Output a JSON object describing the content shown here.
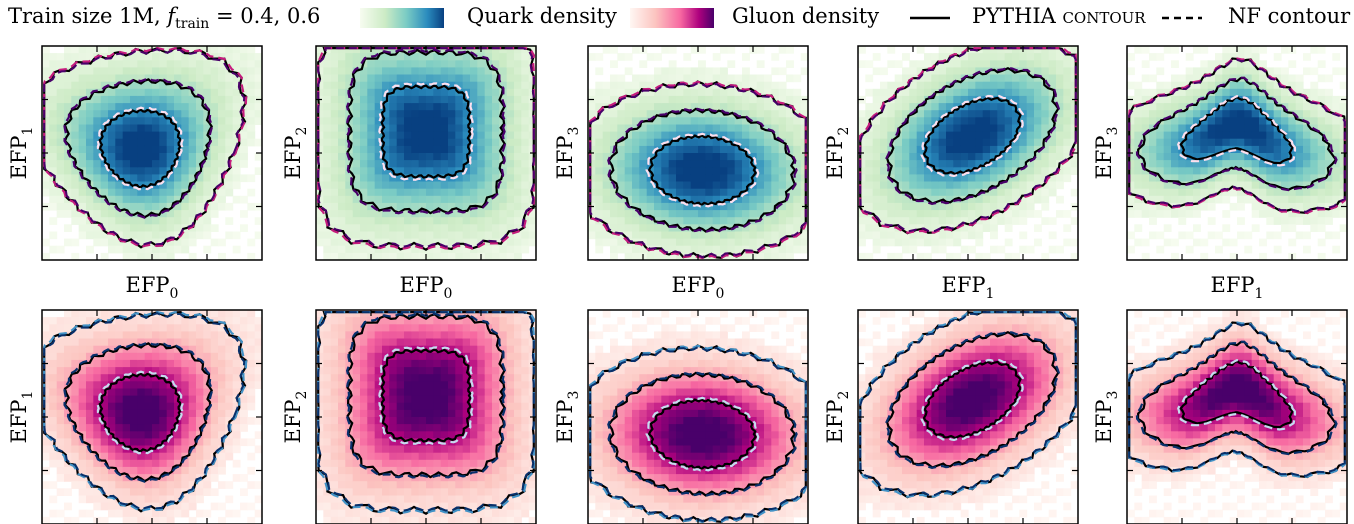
{
  "legend": {
    "title_prefix": "Train size 1M, ",
    "title_f": "f",
    "title_f_sub": "train",
    "title_suffix": " = 0.4, 0.6",
    "quark_label": "Quark density",
    "gluon_label": "Gluon density",
    "pythia_label": "PYTHIA contour",
    "nf_label": "NF contour"
  },
  "colors": {
    "quark_cmap": [
      "#f7fcf0",
      "#ccebc5",
      "#7bccc4",
      "#2b8cbe",
      "#084081"
    ],
    "gluon_cmap": [
      "#fff7f3",
      "#fcc5c0",
      "#f768a1",
      "#ae017e",
      "#49006a"
    ],
    "quark_nf_inner": "#fde0ef",
    "quark_nf_outer": [
      "#c51b7d",
      "#49006a"
    ],
    "gluon_nf_inner": "#c6dbef",
    "gluon_nf_outer": [
      "#4292c6",
      "#08306b"
    ],
    "pythia": "#000000"
  },
  "chart_data": [
    {
      "type": "heatmap",
      "row": "quark",
      "xlabel": "EFP",
      "xsub": "0",
      "ylabel": "EFP",
      "ysub": "1",
      "shape": "triangle"
    },
    {
      "type": "heatmap",
      "row": "quark",
      "xlabel": "EFP",
      "xsub": "0",
      "ylabel": "EFP",
      "ysub": "2",
      "shape": "square"
    },
    {
      "type": "heatmap",
      "row": "quark",
      "xlabel": "EFP",
      "xsub": "0",
      "ylabel": "EFP",
      "ysub": "3",
      "shape": "wide"
    },
    {
      "type": "heatmap",
      "row": "quark",
      "xlabel": "EFP",
      "xsub": "1",
      "ylabel": "EFP",
      "ysub": "2",
      "shape": "diag"
    },
    {
      "type": "heatmap",
      "row": "quark",
      "xlabel": "EFP",
      "xsub": "1",
      "ylabel": "EFP",
      "ysub": "3",
      "shape": "heart"
    },
    {
      "type": "heatmap",
      "row": "gluon",
      "xlabel": "",
      "xsub": "",
      "ylabel": "EFP",
      "ysub": "1",
      "shape": "triangle"
    },
    {
      "type": "heatmap",
      "row": "gluon",
      "xlabel": "",
      "xsub": "",
      "ylabel": "EFP",
      "ysub": "2",
      "shape": "square"
    },
    {
      "type": "heatmap",
      "row": "gluon",
      "xlabel": "",
      "xsub": "",
      "ylabel": "EFP",
      "ysub": "3",
      "shape": "wide"
    },
    {
      "type": "heatmap",
      "row": "gluon",
      "xlabel": "",
      "xsub": "",
      "ylabel": "EFP",
      "ysub": "2",
      "shape": "diag"
    },
    {
      "type": "heatmap",
      "row": "gluon",
      "xlabel": "",
      "xsub": "",
      "ylabel": "EFP",
      "ysub": "3",
      "shape": "heart"
    }
  ]
}
